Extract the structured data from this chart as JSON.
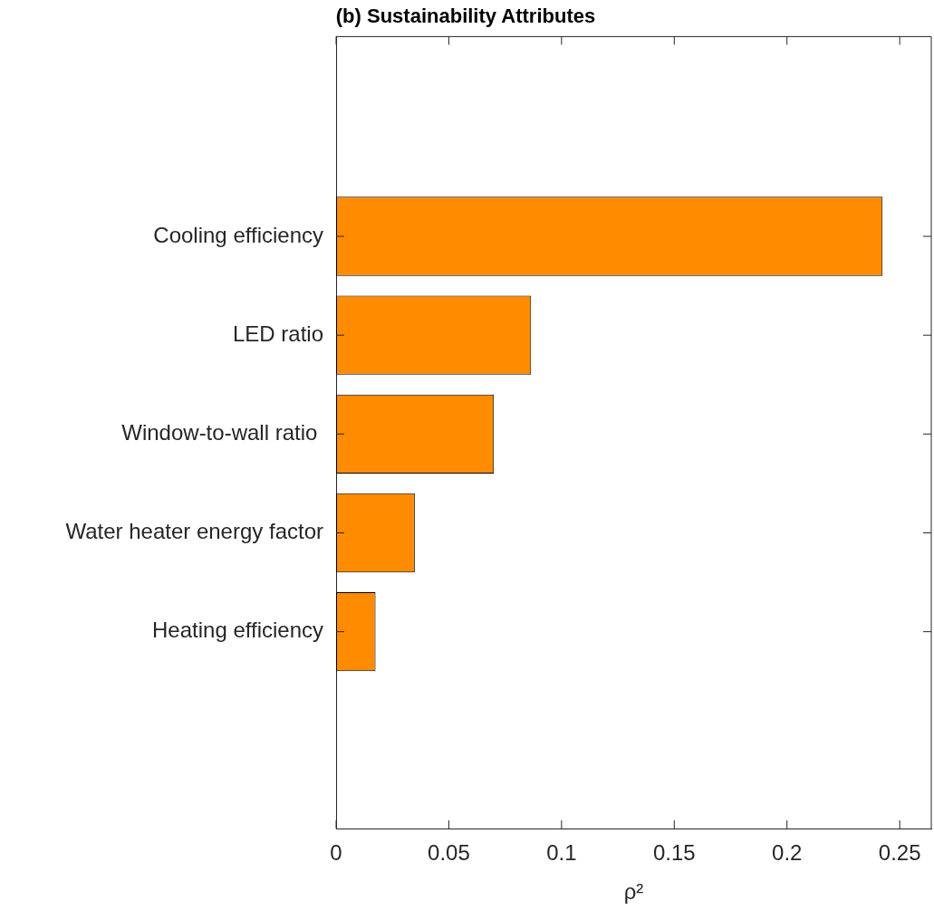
{
  "chart_data": {
    "type": "bar",
    "orientation": "horizontal",
    "title": "(b) Sustainability Attributes",
    "xlabel": "ρ²",
    "categories": [
      "Cooling efficiency",
      "LED ratio",
      "Window-to-wall ratio ",
      "Water heater energy factor",
      "Heating efficiency"
    ],
    "values": [
      0.2424,
      0.0865,
      0.07,
      0.0349,
      0.0175
    ],
    "color": "#ff8c00",
    "xlim": [
      0,
      0.264
    ],
    "xticks": [
      0,
      0.05,
      0.1,
      0.15,
      0.2,
      0.25
    ],
    "grid": false,
    "legend": false
  }
}
